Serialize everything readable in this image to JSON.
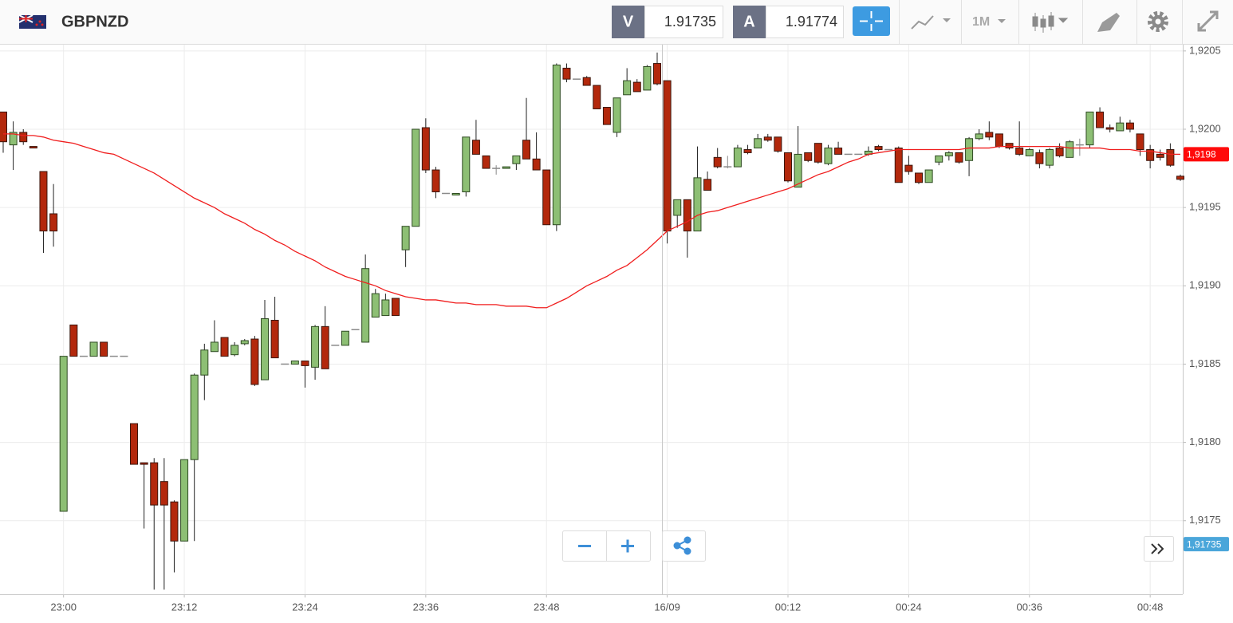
{
  "toolbar": {
    "symbol": "GBPNZD",
    "sell": {
      "label": "V",
      "price": 1.91735
    },
    "buy": {
      "label": "A",
      "price": 1.91774
    },
    "timeframe": "1M"
  },
  "chart_data": {
    "type": "candlestick",
    "categories": [
      null,
      null,
      null,
      null,
      null,
      null,
      "23:00",
      null,
      null,
      null,
      null,
      null,
      null,
      null,
      null,
      null,
      null,
      null,
      "23:12",
      null,
      null,
      null,
      null,
      null,
      null,
      null,
      null,
      null,
      null,
      null,
      "23:24",
      null,
      null,
      null,
      null,
      null,
      null,
      null,
      null,
      null,
      null,
      null,
      "23:36",
      null,
      null,
      null,
      null,
      null,
      null,
      null,
      null,
      null,
      null,
      null,
      "23:48",
      null,
      null,
      null,
      null,
      null,
      null,
      null,
      null,
      null,
      null,
      null,
      "16/09",
      null,
      null,
      null,
      null,
      null,
      null,
      null,
      null,
      null,
      null,
      null,
      "00:12",
      null,
      null,
      null,
      null,
      null,
      null,
      null,
      null,
      null,
      null,
      null,
      "00:24",
      null,
      null,
      null,
      null,
      null,
      null,
      null,
      null,
      null,
      null,
      null,
      "00:36",
      null,
      null,
      null,
      null,
      null,
      null,
      null,
      null,
      null,
      null,
      null,
      "00:48",
      null,
      null,
      null
    ],
    "open": [
      1.92011,
      1.9199,
      1.91998,
      1.91989,
      1.91973,
      1.91946,
      1.91756,
      1.91875,
      1.91855,
      1.91855,
      1.91864,
      1.91855,
      1.91855,
      1.91812,
      1.91787,
      1.91787,
      1.91775,
      1.91762,
      1.91737,
      1.91789,
      1.91843,
      1.91858,
      1.91867,
      1.91856,
      1.91863,
      1.91866,
      1.9184,
      1.91878,
      1.9185,
      1.9185,
      1.91852,
      1.91848,
      1.91874,
      1.91862,
      1.91862,
      1.91872,
      1.91864,
      1.9188,
      1.91881,
      1.91892,
      1.91923,
      1.91938,
      1.92001,
      1.91974,
      1.91959,
      1.91958,
      1.9196,
      1.91993,
      1.91983,
      1.91975,
      1.91975,
      1.91978,
      1.91993,
      1.91981,
      1.91974,
      1.91939,
      1.92039,
      1.92032,
      1.92033,
      1.92028,
      1.92014,
      1.91998,
      1.92022,
      1.9203,
      1.92025,
      1.92042,
      1.92031,
      1.91945,
      1.91955,
      1.91935,
      1.91968,
      1.91982,
      1.91976,
      1.91976,
      1.91987,
      1.91988,
      1.91995,
      1.91995,
      1.91985,
      1.91963,
      1.91985,
      1.91991,
      1.91978,
      1.91988,
      1.91984,
      1.91984,
      1.91984,
      1.91989,
      1.91987,
      1.91988,
      1.91977,
      1.91972,
      1.91966,
      1.91979,
      1.91983,
      1.91985,
      1.9198,
      1.91994,
      1.91998,
      1.91997,
      1.91991,
      1.91988,
      1.91983,
      1.91985,
      1.91977,
      1.91988,
      1.91982,
      1.9199,
      1.9199,
      1.92011,
      1.92001,
      1.91999,
      1.92004,
      1.91997,
      1.91987,
      1.91984,
      1.91987,
      1.9197
    ],
    "high": [
      1.92011,
      1.92005,
      1.92,
      1.91989,
      1.91973,
      1.91965,
      1.91855,
      1.91875,
      1.91855,
      1.91864,
      1.91864,
      1.91855,
      1.91855,
      1.91812,
      1.91787,
      1.9179,
      1.9179,
      1.91763,
      1.91789,
      1.91844,
      1.91863,
      1.91878,
      1.91867,
      1.91864,
      1.91866,
      1.91868,
      1.91891,
      1.91893,
      1.9185,
      1.91852,
      1.91852,
      1.91875,
      1.91887,
      1.91862,
      1.91871,
      1.91872,
      1.9192,
      1.91898,
      1.91895,
      1.91892,
      1.91938,
      1.92,
      1.92007,
      1.91976,
      1.91959,
      1.91959,
      1.91995,
      1.92006,
      1.91983,
      1.91977,
      1.91976,
      1.91983,
      1.9202,
      1.91998,
      1.91974,
      1.92042,
      1.92042,
      1.92032,
      1.92034,
      1.92028,
      1.92014,
      1.9202,
      1.92039,
      1.92032,
      1.92041,
      1.92049,
      1.92031,
      1.91955,
      1.91955,
      1.91989,
      1.91973,
      1.91988,
      1.91983,
      1.9199,
      1.9199,
      1.91997,
      1.91997,
      1.91995,
      1.91985,
      1.92002,
      1.91985,
      1.91991,
      1.9199,
      1.91992,
      1.91984,
      1.91984,
      1.91989,
      1.9199,
      1.91987,
      1.91989,
      1.91983,
      1.91972,
      1.91974,
      1.91983,
      1.91986,
      1.91985,
      1.91995,
      1.92,
      1.92005,
      1.91997,
      1.91991,
      1.92005,
      1.91988,
      1.91987,
      1.91988,
      1.91991,
      1.91993,
      1.91994,
      1.92011,
      1.92014,
      1.92003,
      1.92008,
      1.92006,
      1.91997,
      1.9199,
      1.91987,
      1.91991,
      1.91971
    ],
    "low": [
      1.91985,
      1.91974,
      1.9199,
      1.91988,
      1.91921,
      1.91925,
      1.91756,
      1.91855,
      1.91855,
      1.91855,
      1.91855,
      1.91855,
      1.91855,
      1.91786,
      1.91745,
      1.91706,
      1.91706,
      1.91717,
      1.91737,
      1.91737,
      1.91827,
      1.91858,
      1.91855,
      1.91855,
      1.91862,
      1.91836,
      1.9184,
      1.91854,
      1.9185,
      1.9185,
      1.91835,
      1.9184,
      1.91847,
      1.91862,
      1.91862,
      1.91872,
      1.91864,
      1.9188,
      1.91881,
      1.91881,
      1.91912,
      1.91938,
      1.91972,
      1.91956,
      1.91959,
      1.91958,
      1.91957,
      1.91984,
      1.91975,
      1.91971,
      1.91975,
      1.91974,
      1.91981,
      1.91974,
      1.91939,
      1.91935,
      1.9203,
      1.92032,
      1.92028,
      1.92013,
      1.92003,
      1.91995,
      1.92022,
      1.92024,
      1.92025,
      1.92028,
      1.91927,
      1.91937,
      1.91918,
      1.91935,
      1.91961,
      1.91975,
      1.91975,
      1.91976,
      1.91984,
      1.91988,
      1.91992,
      1.91985,
      1.91966,
      1.91963,
      1.91979,
      1.91978,
      1.91977,
      1.91984,
      1.91984,
      1.91984,
      1.91983,
      1.91986,
      1.91987,
      1.91966,
      1.91971,
      1.91965,
      1.91966,
      1.91977,
      1.9198,
      1.91978,
      1.9197,
      1.91993,
      1.91993,
      1.91988,
      1.91987,
      1.91983,
      1.91983,
      1.91975,
      1.91975,
      1.91982,
      1.91982,
      1.91983,
      1.91988,
      1.92001,
      1.91998,
      1.91999,
      1.91998,
      1.91983,
      1.91975,
      1.9198,
      1.91976,
      1.91967
    ],
    "close": [
      1.91992,
      1.91998,
      1.91992,
      1.91988,
      1.91935,
      1.91935,
      1.91855,
      1.91855,
      1.91855,
      1.91864,
      1.91855,
      1.91855,
      1.91855,
      1.91786,
      1.91786,
      1.9176,
      1.9176,
      1.91737,
      1.91789,
      1.91843,
      1.91859,
      1.91864,
      1.91855,
      1.91862,
      1.91865,
      1.91837,
      1.91879,
      1.91854,
      1.9185,
      1.91852,
      1.91849,
      1.91874,
      1.91847,
      1.91862,
      1.91871,
      1.91872,
      1.91911,
      1.91895,
      1.91891,
      1.91881,
      1.91938,
      1.92,
      1.91974,
      1.9196,
      1.91959,
      1.91959,
      1.91995,
      1.91984,
      1.91975,
      1.91975,
      1.91976,
      1.91983,
      1.91981,
      1.91974,
      1.91939,
      1.92041,
      1.92032,
      1.92032,
      1.92028,
      1.92013,
      1.92003,
      1.9202,
      1.92031,
      1.92024,
      1.9204,
      1.92029,
      1.91935,
      1.91955,
      1.91935,
      1.91969,
      1.91961,
      1.91976,
      1.91976,
      1.91988,
      1.91985,
      1.91994,
      1.91993,
      1.91986,
      1.91967,
      1.91984,
      1.9198,
      1.91979,
      1.91988,
      1.91984,
      1.91984,
      1.91984,
      1.91986,
      1.91987,
      1.91987,
      1.91966,
      1.91973,
      1.91966,
      1.91974,
      1.91983,
      1.91985,
      1.91979,
      1.91994,
      1.91997,
      1.91995,
      1.91989,
      1.91988,
      1.91984,
      1.91987,
      1.91978,
      1.91987,
      1.91983,
      1.91992,
      1.9199,
      1.92011,
      1.92001,
      1.92,
      1.92004,
      1.92,
      1.91987,
      1.9198,
      1.91982,
      1.91977,
      1.91968
    ],
    "up_color": "#8dbf74",
    "down_color": "#b3280c",
    "flat_color": "#8a8a8a",
    "overlays": [
      {
        "color": "#f01e1e",
        "values": [
          1.91997,
          1.91997,
          1.91996,
          1.91996,
          1.91995,
          1.91993,
          1.91992,
          1.91991,
          1.91989,
          1.91987,
          1.91985,
          1.91984,
          1.91981,
          1.91978,
          1.91975,
          1.91972,
          1.91968,
          1.91964,
          1.9196,
          1.91956,
          1.91953,
          1.9195,
          1.91946,
          1.91943,
          1.9194,
          1.91936,
          1.91933,
          1.91929,
          1.91926,
          1.91922,
          1.91919,
          1.91916,
          1.91912,
          1.91909,
          1.91906,
          1.91904,
          1.91902,
          1.919,
          1.91897,
          1.91895,
          1.91893,
          1.91892,
          1.91891,
          1.91891,
          1.9189,
          1.91889,
          1.91889,
          1.91888,
          1.91888,
          1.91888,
          1.91887,
          1.91887,
          1.91887,
          1.91886,
          1.91886,
          1.91889,
          1.91892,
          1.91896,
          1.919,
          1.91903,
          1.91906,
          1.9191,
          1.91913,
          1.91918,
          1.91923,
          1.91929,
          1.91935,
          1.91938,
          1.91941,
          1.91945,
          1.91947,
          1.91948,
          1.9195,
          1.91952,
          1.91954,
          1.91956,
          1.91958,
          1.9196,
          1.91962,
          1.91965,
          1.91968,
          1.91971,
          1.91973,
          1.91976,
          1.91979,
          1.91981,
          1.91984,
          1.91985,
          1.91986,
          1.91987,
          1.91987,
          1.91987,
          1.91987,
          1.91987,
          1.91987,
          1.91987,
          1.91988,
          1.91988,
          1.91988,
          1.91989,
          1.91989,
          1.91989,
          1.91989,
          1.91989,
          1.91989,
          1.91989,
          1.91988,
          1.91988,
          1.91988,
          1.91988,
          1.91987,
          1.91987,
          1.91987,
          1.91986,
          1.91986,
          1.91985,
          1.91984,
          1.91984
        ]
      }
    ],
    "ylim": [
      1.91703,
      1.92054
    ],
    "yticks": [
      {
        "value": 1.9175,
        "label": "1,9175"
      },
      {
        "value": 1.918,
        "label": "1,9180"
      },
      {
        "value": 1.9185,
        "label": "1,9185"
      },
      {
        "value": 1.919,
        "label": "1,9190"
      },
      {
        "value": 1.9195,
        "label": "1,9195"
      },
      {
        "value": 1.92,
        "label": "1,9200"
      },
      {
        "value": 1.9205,
        "label": "1,9205"
      }
    ],
    "grid": true,
    "markers": [
      {
        "value": 1.91984,
        "label": "1,9198",
        "color": "#ff0a0a"
      },
      {
        "value": 1.91735,
        "label": "1,91735",
        "color": "#4aa6da"
      }
    ]
  }
}
